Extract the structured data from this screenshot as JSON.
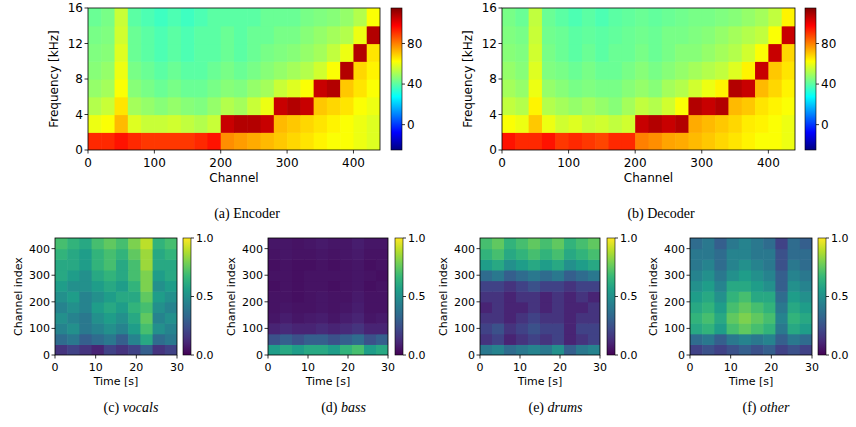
{
  "chart_data": [
    {
      "type": "heatmap",
      "panel": "(a)",
      "title": "Encoder",
      "x_label": "Channel",
      "y_label": "Frequency [kHz]",
      "xlim": [
        0,
        440
      ],
      "ylim": [
        0,
        16
      ],
      "xticks": [
        0,
        100,
        200,
        300,
        400
      ],
      "yticks": [
        0,
        4,
        8,
        12,
        16
      ],
      "color": "jet",
      "color_range": [
        -25,
        115
      ],
      "color_ticks": [
        0,
        40,
        80
      ],
      "cells": [
        [
          92,
          92,
          95,
          92,
          90,
          90,
          90,
          90,
          92,
          95,
          78,
          76,
          74,
          72,
          70,
          68,
          66,
          64,
          62,
          62,
          60,
          58
        ],
        [
          60,
          62,
          72,
          58,
          55,
          55,
          56,
          54,
          52,
          55,
          105,
          108,
          108,
          105,
          72,
          70,
          68,
          66,
          64,
          62,
          60,
          58
        ],
        [
          52,
          55,
          66,
          50,
          48,
          46,
          48,
          46,
          45,
          48,
          52,
          50,
          55,
          60,
          105,
          108,
          105,
          70,
          68,
          66,
          62,
          60
        ],
        [
          48,
          50,
          62,
          46,
          44,
          42,
          44,
          42,
          42,
          44,
          46,
          45,
          48,
          50,
          55,
          58,
          62,
          105,
          108,
          70,
          66,
          62
        ],
        [
          46,
          48,
          60,
          44,
          42,
          40,
          42,
          40,
          40,
          42,
          44,
          42,
          44,
          46,
          48,
          50,
          52,
          56,
          62,
          108,
          68,
          64
        ],
        [
          45,
          46,
          58,
          42,
          40,
          38,
          40,
          38,
          40,
          40,
          42,
          40,
          42,
          44,
          45,
          46,
          48,
          50,
          54,
          60,
          108,
          66
        ],
        [
          44,
          45,
          56,
          42,
          40,
          38,
          40,
          38,
          40,
          40,
          42,
          40,
          42,
          42,
          44,
          44,
          46,
          48,
          50,
          52,
          60,
          108
        ],
        [
          42,
          44,
          55,
          40,
          38,
          36,
          38,
          36,
          38,
          40,
          40,
          40,
          40,
          42,
          42,
          42,
          44,
          45,
          46,
          48,
          52,
          62
        ]
      ]
    },
    {
      "type": "heatmap",
      "panel": "(b)",
      "title": "Decoder",
      "x_label": "Channel",
      "y_label": "Frequency [kHz]",
      "xlim": [
        0,
        440
      ],
      "ylim": [
        0,
        16
      ],
      "xticks": [
        0,
        100,
        200,
        300,
        400
      ],
      "yticks": [
        0,
        4,
        8,
        12,
        16
      ],
      "color": "jet",
      "color_range": [
        -25,
        115
      ],
      "color_ticks": [
        0,
        40,
        80
      ],
      "cells": [
        [
          95,
          92,
          92,
          95,
          90,
          92,
          90,
          88,
          92,
          92,
          80,
          78,
          75,
          74,
          72,
          70,
          68,
          66,
          64,
          62,
          62,
          60
        ],
        [
          62,
          60,
          70,
          60,
          56,
          58,
          55,
          56,
          54,
          56,
          105,
          108,
          105,
          108,
          74,
          72,
          70,
          68,
          65,
          64,
          62,
          60
        ],
        [
          54,
          52,
          64,
          52,
          50,
          48,
          50,
          48,
          46,
          50,
          54,
          52,
          56,
          62,
          108,
          105,
          108,
          72,
          70,
          66,
          64,
          62
        ],
        [
          50,
          48,
          60,
          48,
          46,
          44,
          45,
          44,
          44,
          46,
          48,
          46,
          50,
          52,
          56,
          60,
          64,
          108,
          105,
          72,
          68,
          64
        ],
        [
          48,
          46,
          58,
          45,
          44,
          42,
          44,
          42,
          42,
          44,
          46,
          44,
          46,
          48,
          50,
          52,
          54,
          58,
          64,
          105,
          70,
          66
        ],
        [
          46,
          45,
          56,
          44,
          42,
          40,
          42,
          40,
          42,
          42,
          44,
          42,
          44,
          46,
          46,
          48,
          50,
          52,
          56,
          62,
          105,
          68
        ],
        [
          45,
          44,
          55,
          43,
          42,
          40,
          41,
          40,
          41,
          42,
          43,
          42,
          44,
          44,
          45,
          46,
          48,
          50,
          52,
          54,
          62,
          105
        ],
        [
          44,
          42,
          54,
          42,
          40,
          38,
          40,
          38,
          40,
          41,
          42,
          41,
          42,
          43,
          44,
          44,
          45,
          46,
          48,
          50,
          54,
          64
        ]
      ]
    },
    {
      "type": "heatmap",
      "panel": "(c)",
      "title": "vocals",
      "x_label": "Time [s]",
      "y_label": "Channel index",
      "xlim": [
        0,
        30
      ],
      "ylim": [
        0,
        440
      ],
      "xticks": [
        0,
        10,
        20,
        30
      ],
      "yticks": [
        0,
        100,
        200,
        300,
        400
      ],
      "color": "viridis",
      "color_range": [
        0,
        1
      ],
      "color_ticks": [
        {
          "value": 0,
          "label": "0.0"
        },
        {
          "value": 0.5,
          "label": "0.5"
        },
        {
          "value": 1,
          "label": "1.0"
        }
      ],
      "cells": [
        [
          0.15,
          0.2,
          0.15,
          0.1,
          0.2,
          0.15,
          0.2,
          0.3,
          0.15,
          0.2
        ],
        [
          0.35,
          0.4,
          0.3,
          0.35,
          0.4,
          0.3,
          0.45,
          0.6,
          0.35,
          0.4
        ],
        [
          0.45,
          0.5,
          0.4,
          0.45,
          0.5,
          0.45,
          0.55,
          0.7,
          0.5,
          0.45
        ],
        [
          0.5,
          0.45,
          0.4,
          0.5,
          0.55,
          0.5,
          0.6,
          0.75,
          0.45,
          0.5
        ],
        [
          0.45,
          0.5,
          0.45,
          0.55,
          0.6,
          0.55,
          0.65,
          0.7,
          0.5,
          0.45
        ],
        [
          0.5,
          0.55,
          0.45,
          0.5,
          0.55,
          0.6,
          0.6,
          0.75,
          0.55,
          0.5
        ],
        [
          0.55,
          0.5,
          0.5,
          0.55,
          0.6,
          0.55,
          0.65,
          0.8,
          0.5,
          0.55
        ],
        [
          0.6,
          0.55,
          0.5,
          0.6,
          0.65,
          0.6,
          0.7,
          0.8,
          0.55,
          0.6
        ],
        [
          0.6,
          0.6,
          0.55,
          0.65,
          0.7,
          0.6,
          0.7,
          0.85,
          0.6,
          0.6
        ],
        [
          0.65,
          0.6,
          0.55,
          0.65,
          0.7,
          0.65,
          0.75,
          0.85,
          0.6,
          0.65
        ],
        [
          0.7,
          0.65,
          0.6,
          0.7,
          0.75,
          0.7,
          0.8,
          0.9,
          0.65,
          0.7
        ]
      ]
    },
    {
      "type": "heatmap",
      "panel": "(d)",
      "title": "bass",
      "x_label": "Time [s]",
      "y_label": "Channel index",
      "xlim": [
        0,
        30
      ],
      "ylim": [
        0,
        440
      ],
      "xticks": [
        0,
        10,
        20,
        30
      ],
      "yticks": [
        0,
        100,
        200,
        300,
        400
      ],
      "color": "viridis",
      "color_range": [
        0,
        1
      ],
      "color_ticks": [
        {
          "value": 0,
          "label": "0.0"
        },
        {
          "value": 0.5,
          "label": "0.5"
        },
        {
          "value": 1,
          "label": "1.0"
        }
      ],
      "cells": [
        [
          0.55,
          0.6,
          0.55,
          0.6,
          0.6,
          0.55,
          0.65,
          0.7,
          0.55,
          0.6
        ],
        [
          0.25,
          0.3,
          0.25,
          0.3,
          0.3,
          0.25,
          0.3,
          0.35,
          0.25,
          0.3
        ],
        [
          0.1,
          0.12,
          0.1,
          0.1,
          0.12,
          0.1,
          0.12,
          0.15,
          0.1,
          0.1
        ],
        [
          0.06,
          0.08,
          0.06,
          0.07,
          0.08,
          0.06,
          0.08,
          0.1,
          0.06,
          0.07
        ],
        [
          0.05,
          0.06,
          0.05,
          0.05,
          0.06,
          0.05,
          0.06,
          0.08,
          0.05,
          0.05
        ],
        [
          0.05,
          0.05,
          0.04,
          0.05,
          0.06,
          0.05,
          0.05,
          0.07,
          0.05,
          0.05
        ],
        [
          0.04,
          0.05,
          0.04,
          0.05,
          0.05,
          0.04,
          0.05,
          0.06,
          0.04,
          0.05
        ],
        [
          0.05,
          0.05,
          0.04,
          0.05,
          0.05,
          0.05,
          0.05,
          0.06,
          0.05,
          0.04
        ],
        [
          0.04,
          0.05,
          0.04,
          0.04,
          0.05,
          0.04,
          0.05,
          0.06,
          0.04,
          0.05
        ],
        [
          0.05,
          0.06,
          0.05,
          0.05,
          0.06,
          0.05,
          0.06,
          0.07,
          0.05,
          0.05
        ],
        [
          0.06,
          0.06,
          0.05,
          0.06,
          0.07,
          0.06,
          0.06,
          0.08,
          0.06,
          0.06
        ]
      ]
    },
    {
      "type": "heatmap",
      "panel": "(e)",
      "title": "drums",
      "x_label": "Time [s]",
      "y_label": "Channel index",
      "xlim": [
        0,
        30
      ],
      "ylim": [
        0,
        440
      ],
      "xticks": [
        0,
        10,
        20,
        30
      ],
      "yticks": [
        0,
        100,
        200,
        300,
        400
      ],
      "color": "viridis",
      "color_range": [
        0,
        1
      ],
      "color_ticks": [
        {
          "value": 0,
          "label": "0.0"
        },
        {
          "value": 0.5,
          "label": "0.5"
        },
        {
          "value": 1,
          "label": "1.0"
        }
      ],
      "cells": [
        [
          0.4,
          0.45,
          0.35,
          0.4,
          0.45,
          0.4,
          0.5,
          0.3,
          0.4,
          0.45
        ],
        [
          0.15,
          0.2,
          0.1,
          0.15,
          0.2,
          0.15,
          0.2,
          0.1,
          0.15,
          0.2
        ],
        [
          0.2,
          0.25,
          0.15,
          0.2,
          0.25,
          0.2,
          0.2,
          0.1,
          0.2,
          0.2
        ],
        [
          0.15,
          0.15,
          0.1,
          0.15,
          0.2,
          0.15,
          0.15,
          0.1,
          0.15,
          0.15
        ],
        [
          0.1,
          0.15,
          0.1,
          0.1,
          0.15,
          0.1,
          0.15,
          0.1,
          0.1,
          0.15
        ],
        [
          0.15,
          0.15,
          0.1,
          0.15,
          0.15,
          0.1,
          0.15,
          0.1,
          0.15,
          0.1
        ],
        [
          0.2,
          0.2,
          0.15,
          0.2,
          0.25,
          0.2,
          0.2,
          0.15,
          0.2,
          0.2
        ],
        [
          0.35,
          0.4,
          0.3,
          0.35,
          0.4,
          0.35,
          0.4,
          0.3,
          0.35,
          0.4
        ],
        [
          0.55,
          0.6,
          0.5,
          0.55,
          0.6,
          0.55,
          0.6,
          0.5,
          0.55,
          0.6
        ],
        [
          0.65,
          0.7,
          0.6,
          0.65,
          0.7,
          0.65,
          0.7,
          0.6,
          0.65,
          0.7
        ],
        [
          0.7,
          0.75,
          0.65,
          0.7,
          0.75,
          0.7,
          0.75,
          0.65,
          0.7,
          0.75
        ]
      ]
    },
    {
      "type": "heatmap",
      "panel": "(f)",
      "title": "other",
      "x_label": "Time [s]",
      "y_label": "Channel index",
      "xlim": [
        0,
        30
      ],
      "ylim": [
        0,
        440
      ],
      "xticks": [
        0,
        10,
        20,
        30
      ],
      "yticks": [
        0,
        100,
        200,
        300,
        400
      ],
      "color": "viridis",
      "color_range": [
        0,
        1
      ],
      "color_ticks": [
        {
          "value": 0,
          "label": "0.0"
        },
        {
          "value": 0.5,
          "label": "0.5"
        },
        {
          "value": 1,
          "label": "1.0"
        }
      ],
      "cells": [
        [
          0.2,
          0.25,
          0.2,
          0.25,
          0.3,
          0.25,
          0.3,
          0.2,
          0.25,
          0.2
        ],
        [
          0.35,
          0.4,
          0.3,
          0.4,
          0.45,
          0.4,
          0.45,
          0.3,
          0.4,
          0.35
        ],
        [
          0.6,
          0.65,
          0.55,
          0.7,
          0.75,
          0.7,
          0.65,
          0.4,
          0.6,
          0.55
        ],
        [
          0.65,
          0.7,
          0.6,
          0.75,
          0.8,
          0.75,
          0.7,
          0.45,
          0.65,
          0.6
        ],
        [
          0.6,
          0.65,
          0.55,
          0.7,
          0.75,
          0.7,
          0.65,
          0.4,
          0.6,
          0.55
        ],
        [
          0.55,
          0.6,
          0.5,
          0.65,
          0.7,
          0.6,
          0.6,
          0.35,
          0.55,
          0.5
        ],
        [
          0.5,
          0.55,
          0.45,
          0.6,
          0.6,
          0.55,
          0.5,
          0.3,
          0.5,
          0.45
        ],
        [
          0.45,
          0.5,
          0.4,
          0.5,
          0.55,
          0.5,
          0.45,
          0.3,
          0.45,
          0.4
        ],
        [
          0.4,
          0.45,
          0.35,
          0.45,
          0.5,
          0.45,
          0.4,
          0.25,
          0.4,
          0.35
        ],
        [
          0.4,
          0.4,
          0.35,
          0.45,
          0.45,
          0.4,
          0.4,
          0.25,
          0.35,
          0.35
        ],
        [
          0.35,
          0.4,
          0.3,
          0.4,
          0.45,
          0.4,
          0.35,
          0.2,
          0.35,
          0.3
        ]
      ]
    }
  ]
}
